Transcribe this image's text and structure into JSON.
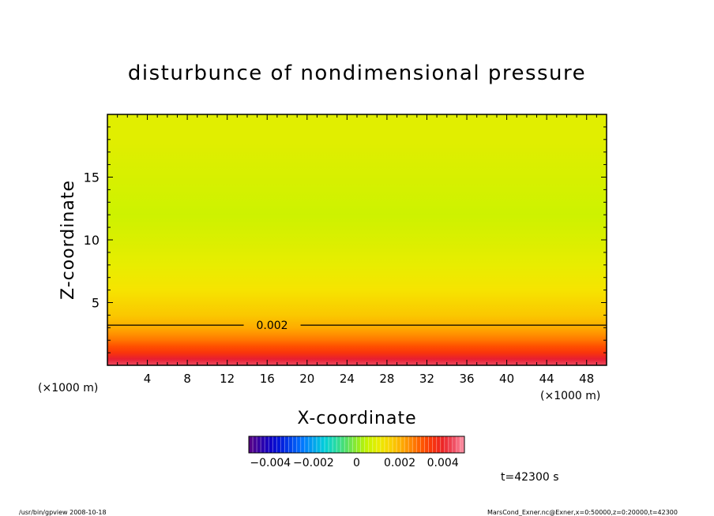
{
  "chart_data": {
    "type": "heatmap",
    "title": "disturbunce of nondimensional pressure",
    "xlabel": "X-coordinate",
    "ylabel": "Z-coordinate",
    "x_unit": "(×1000 m)",
    "xlim": [
      0,
      50
    ],
    "ylim": [
      0,
      20
    ],
    "x_ticks": [
      4,
      8,
      12,
      16,
      20,
      24,
      28,
      32,
      36,
      40,
      44,
      48
    ],
    "y_ticks": [
      5,
      10,
      15
    ],
    "z_range": [
      -0.005,
      0.005
    ],
    "z_profile": [
      {
        "z": 0.0,
        "value": 0.0045
      },
      {
        "z": 0.5,
        "value": 0.0042
      },
      {
        "z": 1.0,
        "value": 0.0035
      },
      {
        "z": 1.5,
        "value": 0.0031
      },
      {
        "z": 2.0,
        "value": 0.0027
      },
      {
        "z": 2.5,
        "value": 0.0024
      },
      {
        "z": 3.0,
        "value": 0.0021
      },
      {
        "z": 3.5,
        "value": 0.0019
      },
      {
        "z": 4.0,
        "value": 0.0017
      },
      {
        "z": 6.0,
        "value": 0.0013
      },
      {
        "z": 8.0,
        "value": 0.001
      },
      {
        "z": 10.0,
        "value": 0.0008
      },
      {
        "z": 12.0,
        "value": 0.0006
      },
      {
        "z": 14.0,
        "value": 0.0007
      },
      {
        "z": 16.0,
        "value": 0.0008
      },
      {
        "z": 18.0,
        "value": 0.0009
      },
      {
        "z": 20.0,
        "value": 0.0009
      }
    ],
    "contours": [
      {
        "level": 0.002,
        "label": "0.002",
        "z": 3.2,
        "label_x": 16.5
      }
    ],
    "colorbar": {
      "min": -0.005,
      "max": 0.005,
      "tick_values": [
        -0.004,
        -0.002,
        0,
        0.002,
        0.004
      ],
      "tick_labels": [
        "−0.004",
        "−0.002",
        "0",
        "0.002",
        "0.004"
      ]
    },
    "time_label": "t=42300 s",
    "footer_left": "/usr/bin/gpview  2008-10-18",
    "footer_right": "MarsCond_Exner.nc@Exner,x=0:50000,z=0:20000,t=42300"
  }
}
